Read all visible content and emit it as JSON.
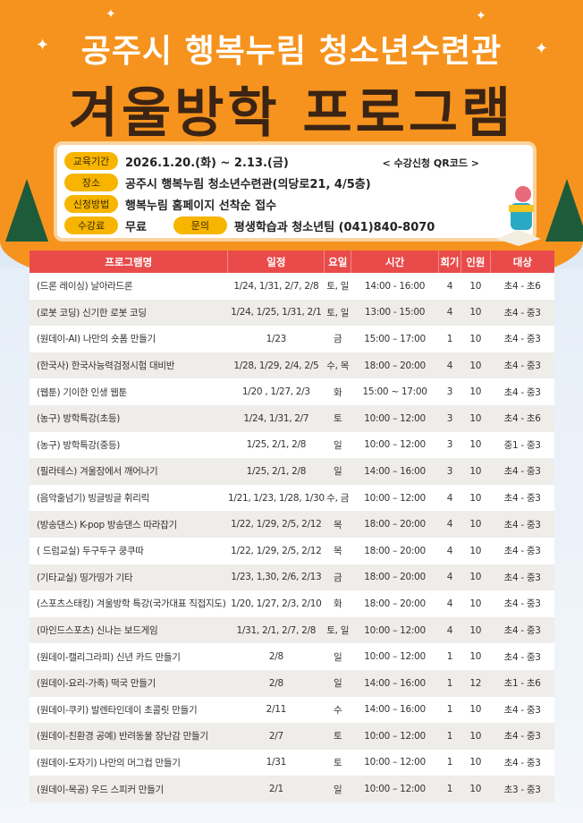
{
  "header": {
    "title_line1": "공주시 행복누림 청소년수련관",
    "title_line2": "겨울방학 프로그램"
  },
  "info": {
    "period_label": "교육기간",
    "period": "2026.1.20.(화) ~ 2.13.(금)",
    "qr_label": "< 수강신청 QR코드 >",
    "place_label": "장소",
    "place": "공주시 행복누림 청소년수련관(의당로21, 4/5층)",
    "method_label": "신청방법",
    "method": "행복누림 홈페이지 선착순 접수",
    "fee_label": "수강료",
    "fee": "무료",
    "contact_label": "문의",
    "contact": "평생학습과 청소년팀 (041)840-8070"
  },
  "colors": {
    "orange": "#f6931e",
    "header_red": "#e94b4b",
    "pill": "#f7b500",
    "title_dark": "#3b2414"
  },
  "table": {
    "headers": [
      "프로그램명",
      "일정",
      "요일",
      "시간",
      "회기",
      "인원",
      "대상"
    ],
    "rows": [
      [
        "(드론 레이싱) 날아라드론",
        "1/24, 1/31, 2/7, 2/8",
        "토, 일",
        "14:00 - 16:00",
        "4",
        "10",
        "초4 - 초6"
      ],
      [
        "(로봇 코딩) 신기한 로봇 코딩",
        "1/24, 1/25, 1/31, 2/1",
        "토, 일",
        "13:00 - 15:00",
        "4",
        "10",
        "초4 - 중3"
      ],
      [
        "(원데이-AI) 나만의 숏폼 만들기",
        "1/23",
        "금",
        "15:00 – 17:00",
        "1",
        "10",
        "초4 - 중3"
      ],
      [
        "(한국사) 한국사능력검정시험 대비반",
        "1/28, 1/29, 2/4, 2/5",
        "수, 목",
        "18:00 – 20:00",
        "4",
        "10",
        "초4 - 중3"
      ],
      [
        "(웹툰) 기이한 인생 웹툰",
        "1/20 , 1/27, 2/3",
        "화",
        "15:00 ~ 17:00",
        "3",
        "10",
        "초4 - 중3"
      ],
      [
        "(농구) 방학특강(초등)",
        "1/24, 1/31, 2/7",
        "토",
        "10:00 – 12:00",
        "3",
        "10",
        "초4 - 초6"
      ],
      [
        "(농구) 방학특강(중등)",
        "1/25, 2/1, 2/8",
        "일",
        "10:00 – 12:00",
        "3",
        "10",
        "중1 - 중3"
      ],
      [
        "(필라테스) 겨울잠에서 깨어나기",
        "1/25, 2/1, 2/8",
        "일",
        "14:00 – 16:00",
        "3",
        "10",
        "초4 - 중3"
      ],
      [
        "(음악줄넘기) 빙글빙글 휘리릭",
        "1/21, 1/23, 1/28, 1/30",
        "수, 금",
        "10:00 – 12:00",
        "4",
        "10",
        "초4 - 중3"
      ],
      [
        "(방송댄스) K-pop 방송댄스 따라잡기",
        "1/22, 1/29, 2/5, 2/12",
        "목",
        "18:00 – 20:00",
        "4",
        "10",
        "초4 - 중3"
      ],
      [
        "( 드럼교실) 두구두구 쿵쿠따",
        "1/22, 1/29, 2/5, 2/12",
        "목",
        "18:00 – 20:00",
        "4",
        "10",
        "초4 - 중3"
      ],
      [
        "(기타교실) 띵가띵가 기타",
        "1/23, 1,30, 2/6, 2/13",
        "금",
        "18:00 – 20:00",
        "4",
        "10",
        "초4 - 중3"
      ],
      [
        "(스포츠스태킹) 겨울방학 특강(국가대표 직접지도)",
        "1/20, 1/27, 2/3, 2/10",
        "화",
        "18:00 – 20:00",
        "4",
        "10",
        "초4 - 중3"
      ],
      [
        "(마인드스포츠) 신나는 보드게임",
        "1/31, 2/1, 2/7, 2/8",
        "토, 일",
        "10:00 – 12:00",
        "4",
        "10",
        "초4 - 중3"
      ],
      [
        "(원데이-캘리그라피) 신년 카드 만들기",
        "2/8",
        "일",
        "10:00 – 12:00",
        "1",
        "10",
        "초4 - 중3"
      ],
      [
        "(원데이-요리-가족) 떡국 만들기",
        "2/8",
        "일",
        "14:00 – 16:00",
        "1",
        "12",
        "초1 - 초6"
      ],
      [
        "(원데이-쿠키) 발렌타인데이 초콜릿 만들기",
        "2/11",
        "수",
        "14:00 – 16:00",
        "1",
        "10",
        "초4 - 중3"
      ],
      [
        "(원데이-친환경 공예) 반려동물 장난감 만들기",
        "2/7",
        "토",
        "10:00 – 12:00",
        "1",
        "10",
        "초4 - 중3"
      ],
      [
        "(원데이-도자기) 나만의 머그컵 만들기",
        "1/31",
        "토",
        "10:00 – 12:00",
        "1",
        "10",
        "초4 - 중3"
      ],
      [
        "(원데이-목공) 우드 스피커 만들기",
        "2/1",
        "일",
        "10:00 – 12:00",
        "1",
        "10",
        "초3 - 중3"
      ]
    ]
  }
}
